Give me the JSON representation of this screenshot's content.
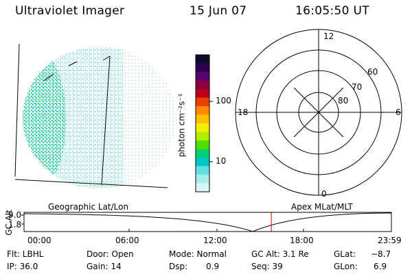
{
  "header": {
    "instrument": "Ultraviolet Imager",
    "date": "15 Jun 07",
    "time": "16:05:50 UT"
  },
  "colorbar": {
    "unit_label": "photon cm⁻²s⁻¹",
    "ticks": [
      "100",
      "10"
    ],
    "colors": [
      "#0b0b2a",
      "#2a0050",
      "#5a0070",
      "#8a0040",
      "#c00020",
      "#e84000",
      "#ff8a00",
      "#ffc000",
      "#f0f000",
      "#b0f000",
      "#50e000",
      "#00d070",
      "#00c8c8",
      "#60e0e0",
      "#a8ecec",
      "#dcf4f4"
    ]
  },
  "polar_plot": {
    "mlt_labels": {
      "top": "12",
      "left": "18",
      "right": "6",
      "bottom": "0"
    },
    "lat_labels": [
      "60",
      "70",
      "80"
    ]
  },
  "track_panel": {
    "left_title": "Geographic Lat/Lon",
    "right_title": "Apex MLat/MLT",
    "axis_label": "GC Alt",
    "y_ticks": [
      "9.0",
      "1.8"
    ],
    "x_ticks": [
      "00:00",
      "06:00",
      "12:00",
      "18:00",
      "23:59"
    ],
    "current_time_fraction": 0.673
  },
  "status": {
    "row1": [
      {
        "label": "Flt: LBHL"
      },
      {
        "label": "Door: Open"
      },
      {
        "label": "Mode: Normal"
      },
      {
        "label": "GC Alt: 3.1 Re"
      },
      {
        "label": "GLat:",
        "value": "−8.7"
      }
    ],
    "row2": [
      {
        "label": "IP: 36.0"
      },
      {
        "label": "Gain: 14"
      },
      {
        "label": "Dsp:",
        "value": "0.9"
      },
      {
        "label": "Seq: 39"
      },
      {
        "label": "GLon:",
        "value": "6.9"
      }
    ]
  }
}
